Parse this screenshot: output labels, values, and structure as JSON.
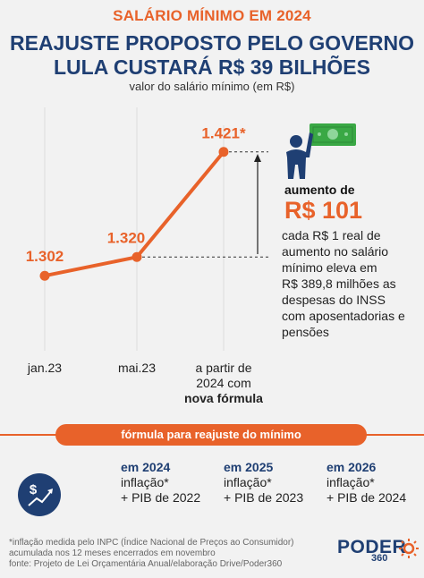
{
  "header": {
    "kicker": "SALÁRIO MÍNIMO EM 2024",
    "headline_line1": "REAJUSTE PROPOSTO PELO GOVERNO",
    "headline_line2": "LULA CUSTARÁ R$ 39 BILHÕES",
    "subtitle": "valor do salário mínimo (em R$)"
  },
  "chart_data": {
    "type": "line",
    "categories": [
      "jan.23",
      "mai.23",
      "a partir de 2024 com nova fórmula"
    ],
    "x_tick_labels": {
      "jan": "jan.23",
      "mai": "mai.23",
      "future_line1": "a partir de",
      "future_line2": "2024 com",
      "future_line3": "nova fórmula"
    },
    "series": [
      {
        "values": [
          1302,
          1320,
          1421
        ]
      }
    ],
    "data_labels": [
      "1.302",
      "1.320",
      "1.421*"
    ],
    "ylim": [
      1230,
      1450
    ],
    "line_color": "#e8622a",
    "grid": false
  },
  "callout": {
    "label": "aumento de",
    "value": "R$ 101",
    "description_lines": [
      "cada R$ 1 real de",
      "aumento no salário",
      "mínimo eleva em",
      "R$ 389,8 milhões as",
      "despesas do INSS",
      "com aposentadorias e",
      "pensões"
    ]
  },
  "formula": {
    "banner": "fórmula para reajuste do mínimo",
    "columns": [
      {
        "year": "em 2024",
        "line1": "inflação*",
        "line2": "+ PIB de 2022"
      },
      {
        "year": "em 2025",
        "line1": "inflação*",
        "line2": "+ PIB de 2023"
      },
      {
        "year": "em 2026",
        "line1": "inflação*",
        "line2": "+ PIB de 2024"
      }
    ]
  },
  "footer": {
    "note1": "*inflação medida pelo INPC (Índice Nacional de Preços ao Consumidor)",
    "note2": "acumulada nos 12 meses encerrados em novembro",
    "source": "fonte: Projeto de Lei Orçamentária Anual/elaboração Drive/Poder360",
    "logo": "PODER",
    "logo_sub": "360"
  },
  "colors": {
    "accent": "#e8622a",
    "navy": "#1f3f73",
    "background": "#f2f2f2",
    "money_green": "#3aa845"
  },
  "icons": [
    "money-bill-icon",
    "person-icon",
    "dollar-chart-icon",
    "sun-logo-icon"
  ]
}
